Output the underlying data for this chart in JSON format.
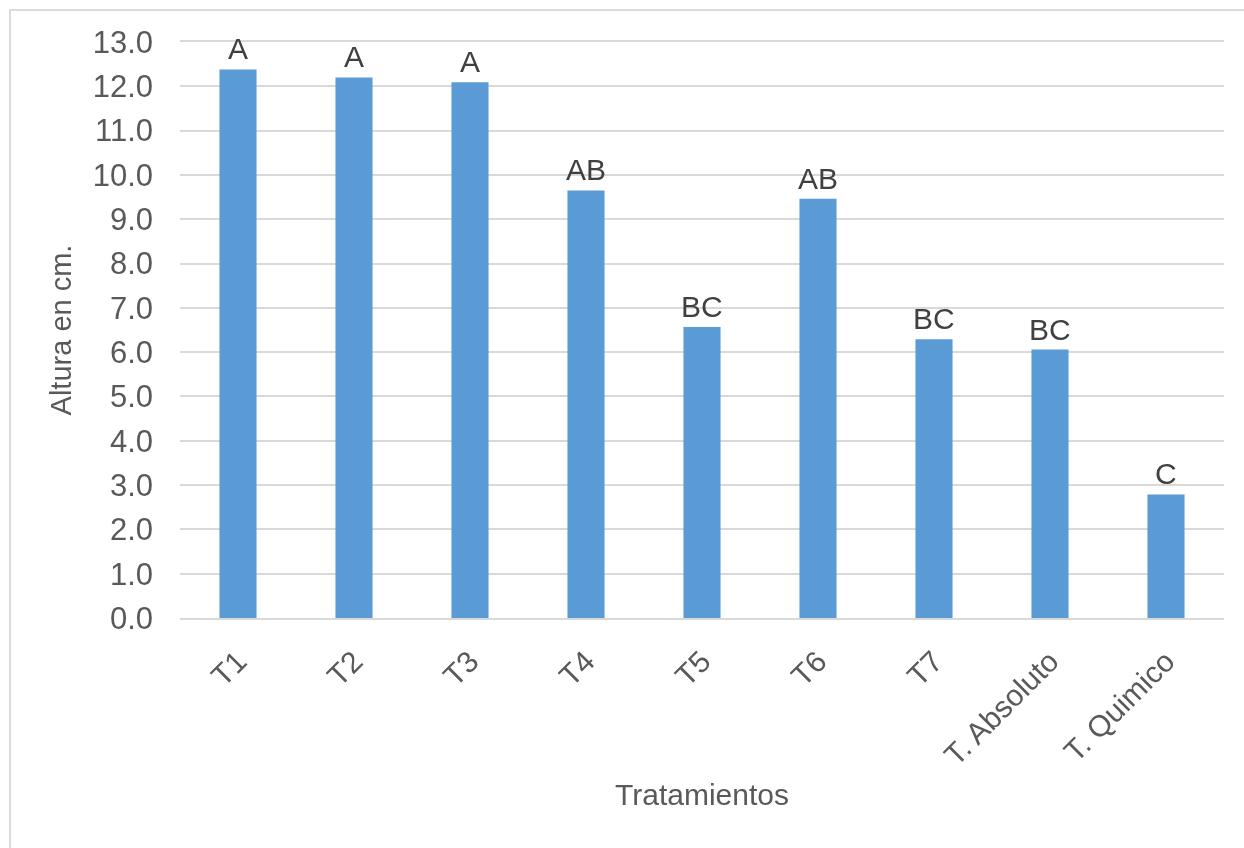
{
  "chart_data": {
    "type": "bar",
    "xlabel": "Tratamientos",
    "ylabel": "Altura en cm.",
    "categories": [
      "T1",
      "T2",
      "T3",
      "T4",
      "T5",
      "T6",
      "T7",
      "T. Absoluto",
      "T. Quimico"
    ],
    "values": [
      12.38,
      12.2,
      12.09,
      9.65,
      6.57,
      9.46,
      6.29,
      6.06,
      2.79
    ],
    "color": "#5b9bd5",
    "ylim": [
      0,
      13
    ],
    "yticks": [
      {
        "value": 0,
        "label": "0.0"
      },
      {
        "value": 1,
        "label": "1.0"
      },
      {
        "value": 2,
        "label": "2.0"
      },
      {
        "value": 3,
        "label": "3.0"
      },
      {
        "value": 4,
        "label": "4.0"
      },
      {
        "value": 5,
        "label": "5.0"
      },
      {
        "value": 6,
        "label": "6.0"
      },
      {
        "value": 7,
        "label": "7.0"
      },
      {
        "value": 8,
        "label": "8.0"
      },
      {
        "value": 9,
        "label": "9.0"
      },
      {
        "value": 10,
        "label": "10.0"
      },
      {
        "value": 11,
        "label": "11.0"
      },
      {
        "value": 12,
        "label": "12.0"
      },
      {
        "value": 13,
        "label": "13.0"
      }
    ],
    "grid": "y",
    "annotations": [
      {
        "text": "A",
        "x": "T1",
        "y": 12.38
      },
      {
        "text": "A",
        "x": "T2",
        "y": 12.2
      },
      {
        "text": "A",
        "x": "T3",
        "y": 12.09
      },
      {
        "text": "AB",
        "x": "T4",
        "y": 9.65
      },
      {
        "text": "BC",
        "x": "T5",
        "y": 6.57
      },
      {
        "text": "AB",
        "x": "T6",
        "y": 9.46
      },
      {
        "text": "BC",
        "x": "T7",
        "y": 6.29
      },
      {
        "text": "BC",
        "x": "T. Absoluto",
        "y": 6.06
      },
      {
        "text": "C",
        "x": "T. Quimico",
        "y": 2.79
      }
    ]
  }
}
